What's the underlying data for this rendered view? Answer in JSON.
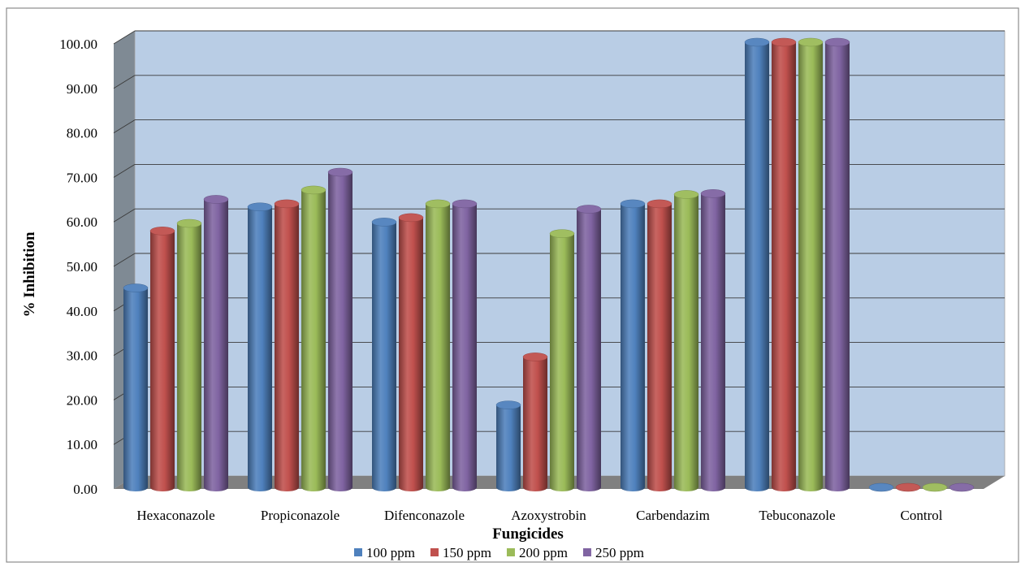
{
  "chart_data": {
    "type": "bar",
    "title": "",
    "xlabel": "Fungicides",
    "ylabel": "% Inhibition",
    "ylim": [
      0,
      100
    ],
    "ytick_step": 10,
    "ytick_decimals": 2,
    "grid": true,
    "legend_position": "bottom",
    "categories": [
      "Hexaconazole",
      "Propiconazole",
      "Difenconazole",
      "Azoxystrobin",
      "Carbendazim",
      "Tebuconazole",
      "Control"
    ],
    "series": [
      {
        "name": "100 ppm",
        "color": "#4F81BD",
        "values": [
          44.8,
          63.0,
          59.6,
          18.5,
          63.7,
          100.0,
          0.0
        ]
      },
      {
        "name": "150 ppm",
        "color": "#C0504D",
        "values": [
          57.6,
          63.7,
          60.6,
          29.3,
          63.7,
          100.0,
          0.0
        ]
      },
      {
        "name": "200 ppm",
        "color": "#9BBB59",
        "values": [
          59.3,
          66.8,
          63.7,
          57.0,
          65.8,
          100.0,
          0.0
        ]
      },
      {
        "name": "250 ppm",
        "color": "#8064A2",
        "values": [
          64.7,
          70.8,
          63.7,
          62.5,
          66.0,
          100.0,
          0.0
        ]
      }
    ]
  }
}
